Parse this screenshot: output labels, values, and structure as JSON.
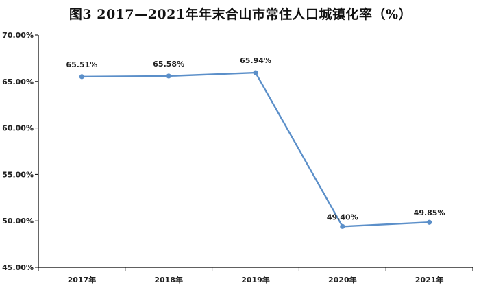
{
  "chart_data": {
    "type": "line",
    "title": "图3  2017—2021年年末合山市常住人口城镇化率（%）",
    "categories": [
      "2017年",
      "2018年",
      "2019年",
      "2020年",
      "2021年"
    ],
    "series": [
      {
        "values": [
          65.51,
          65.58,
          65.94,
          49.4,
          49.85
        ],
        "labels": [
          "65.51%",
          "65.58%",
          "65.94%",
          "49.40%",
          "49.85%"
        ]
      }
    ],
    "ylim": [
      45,
      70
    ],
    "yticks": [
      45,
      50,
      55,
      60,
      65,
      70
    ],
    "ytick_labels": [
      "45.00%",
      "50.00%",
      "55.00%",
      "60.00%",
      "65.00%",
      "70.00%"
    ],
    "grid": false,
    "legend": "none",
    "colors": {
      "line": "#5b8fc9",
      "axis": "#000000"
    }
  }
}
